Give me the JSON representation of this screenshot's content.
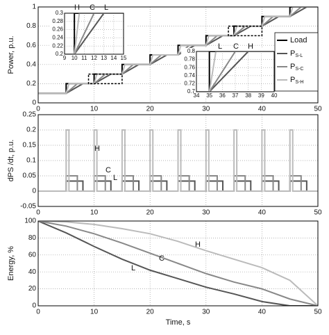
{
  "chart_data": [
    {
      "type": "line",
      "ylabel": "Power, p.u.",
      "xlim": [
        0,
        50
      ],
      "xticks": [
        0,
        10,
        20,
        30,
        40,
        50
      ],
      "ylim": [
        0,
        1
      ],
      "yticks": [
        0,
        0.2,
        0.4,
        0.6,
        0.8,
        1
      ],
      "grid": true,
      "legend": "right",
      "series": [
        {
          "name": "Load",
          "color": "#000000",
          "x": [
            0,
            5,
            5,
            10,
            10,
            15,
            15,
            20,
            20,
            25,
            25,
            30,
            30,
            35,
            35,
            40,
            40,
            45,
            45,
            50
          ],
          "values": [
            0.1,
            0.1,
            0.2,
            0.2,
            0.3,
            0.3,
            0.4,
            0.4,
            0.5,
            0.5,
            0.6,
            0.6,
            0.7,
            0.7,
            0.8,
            0.8,
            0.9,
            0.9,
            1,
            1
          ]
        },
        {
          "name": "PS-L",
          "color": "#555555",
          "x": [
            0,
            5,
            8,
            10,
            13,
            15,
            18,
            20,
            23,
            25,
            28,
            30,
            33,
            35,
            38,
            40,
            43,
            45,
            48,
            50
          ],
          "values": [
            0.1,
            0.1,
            0.2,
            0.2,
            0.3,
            0.3,
            0.4,
            0.4,
            0.5,
            0.5,
            0.6,
            0.6,
            0.7,
            0.7,
            0.8,
            0.8,
            0.9,
            0.9,
            1,
            1
          ]
        },
        {
          "name": "PS-C",
          "color": "#888888",
          "x": [
            0,
            5,
            7,
            10,
            12,
            15,
            17,
            20,
            22,
            25,
            27,
            30,
            32,
            35,
            37,
            40,
            42,
            45,
            47,
            50
          ],
          "values": [
            0.1,
            0.1,
            0.2,
            0.2,
            0.3,
            0.3,
            0.4,
            0.4,
            0.5,
            0.5,
            0.6,
            0.6,
            0.7,
            0.7,
            0.8,
            0.8,
            0.9,
            0.9,
            1,
            1
          ]
        },
        {
          "name": "PS-H",
          "color": "#bbbbbb",
          "x": [
            0,
            5,
            5.5,
            10,
            10.5,
            15,
            15.5,
            20,
            20.5,
            25,
            25.5,
            30,
            30.5,
            35,
            35.5,
            40,
            40.5,
            45,
            45.5,
            50
          ],
          "values": [
            0.1,
            0.1,
            0.2,
            0.2,
            0.3,
            0.3,
            0.4,
            0.4,
            0.5,
            0.5,
            0.6,
            0.6,
            0.7,
            0.7,
            0.8,
            0.8,
            0.9,
            0.9,
            1,
            1
          ]
        }
      ],
      "insets": [
        {
          "xlim": [
            9,
            15
          ],
          "xticks": [
            9,
            10,
            11,
            12,
            13,
            14,
            15
          ],
          "ylim": [
            0.2,
            0.3
          ],
          "yticks": [
            0.2,
            0.22,
            0.24,
            0.26,
            0.28,
            0.3
          ],
          "annotations": [
            "H",
            "C",
            "L"
          ]
        },
        {
          "xlim": [
            34,
            40
          ],
          "xticks": [
            34,
            35,
            36,
            37,
            38,
            39,
            40
          ],
          "ylim": [
            0.7,
            0.8
          ],
          "yticks": [
            0.7,
            0.72,
            0.74,
            0.76,
            0.78,
            0.8
          ],
          "annotations": [
            "L",
            "C",
            "H"
          ]
        }
      ]
    },
    {
      "type": "line",
      "ylabel": "dPS /dt, p.u.",
      "xlim": [
        0,
        50
      ],
      "xticks": [
        0,
        10,
        20,
        30,
        40,
        50
      ],
      "ylim": [
        -0.05,
        0.25
      ],
      "yticks": [
        -0.05,
        0,
        0.05,
        0.1,
        0.15,
        0.2,
        0.25
      ],
      "grid": true,
      "annotations": [
        "H",
        "C",
        "L"
      ],
      "series": [
        {
          "name": "PS-L",
          "color": "#555555",
          "x": [
            0,
            5,
            5,
            8,
            8,
            10,
            10,
            13,
            13,
            15,
            15,
            18,
            18,
            20,
            20,
            23,
            23,
            25,
            25,
            28,
            28,
            30,
            30,
            33,
            33,
            35,
            35,
            38,
            38,
            40,
            40,
            43,
            43,
            45,
            45,
            48,
            48,
            50
          ],
          "values": [
            0,
            0,
            0.033,
            0.033,
            0,
            0,
            0.033,
            0.033,
            0,
            0,
            0.033,
            0.033,
            0,
            0,
            0.033,
            0.033,
            0,
            0,
            0.033,
            0.033,
            0,
            0,
            0.033,
            0.033,
            0,
            0,
            0.033,
            0.033,
            0,
            0,
            0.033,
            0.033,
            0,
            0,
            0.033,
            0.033,
            0,
            0
          ]
        },
        {
          "name": "PS-C",
          "color": "#888888",
          "x": [
            0,
            5,
            5,
            7,
            7,
            10,
            10,
            12,
            12,
            15,
            15,
            17,
            17,
            20,
            20,
            22,
            22,
            25,
            25,
            27,
            27,
            30,
            30,
            32,
            32,
            35,
            35,
            37,
            37,
            40,
            40,
            42,
            42,
            45,
            45,
            47,
            47,
            50
          ],
          "values": [
            0,
            0,
            0.05,
            0.05,
            0,
            0,
            0.05,
            0.05,
            0,
            0,
            0.05,
            0.05,
            0,
            0,
            0.05,
            0.05,
            0,
            0,
            0.05,
            0.05,
            0,
            0,
            0.05,
            0.05,
            0,
            0,
            0.05,
            0.05,
            0,
            0,
            0.05,
            0.05,
            0,
            0,
            0.05,
            0.05,
            0,
            0
          ]
        },
        {
          "name": "PS-H",
          "color": "#bbbbbb",
          "x": [
            0,
            5,
            5,
            5.5,
            5.5,
            10,
            10,
            10.5,
            10.5,
            15,
            15,
            15.5,
            15.5,
            20,
            20,
            20.5,
            20.5,
            25,
            25,
            25.5,
            25.5,
            30,
            30,
            30.5,
            30.5,
            35,
            35,
            35.5,
            35.5,
            40,
            40,
            40.5,
            40.5,
            45,
            45,
            45.5,
            45.5,
            50
          ],
          "values": [
            0,
            0,
            0.2,
            0.2,
            0,
            0,
            0.2,
            0.2,
            0,
            0,
            0.2,
            0.2,
            0,
            0,
            0.2,
            0.2,
            0,
            0,
            0.2,
            0.2,
            0,
            0,
            0.2,
            0.2,
            0,
            0,
            0.2,
            0.2,
            0,
            0,
            0.2,
            0.2,
            0,
            0,
            0.2,
            0.2,
            0,
            0
          ]
        }
      ]
    },
    {
      "type": "line",
      "ylabel": "Energy, %",
      "xlabel": "Time, s",
      "xlim": [
        0,
        50
      ],
      "xticks": [
        0,
        10,
        20,
        30,
        40,
        50
      ],
      "ylim": [
        0,
        100
      ],
      "yticks": [
        0,
        20,
        40,
        60,
        80,
        100
      ],
      "grid": true,
      "annotations": [
        "H",
        "C",
        "L"
      ],
      "x": [
        0,
        5,
        10,
        15,
        20,
        25,
        30,
        35,
        40,
        45,
        50
      ],
      "series": [
        {
          "name": "PS-L",
          "color": "#555555",
          "values": [
            100,
            86,
            70,
            55,
            42,
            32,
            22,
            14,
            5,
            0,
            0
          ]
        },
        {
          "name": "PS-C",
          "color": "#888888",
          "values": [
            100,
            94,
            85,
            74,
            62,
            50,
            38,
            28,
            20,
            8,
            0
          ]
        },
        {
          "name": "PS-H",
          "color": "#bbbbbb",
          "values": [
            100,
            99,
            96,
            91,
            85,
            76,
            65,
            55,
            45,
            30,
            0
          ]
        }
      ]
    }
  ]
}
